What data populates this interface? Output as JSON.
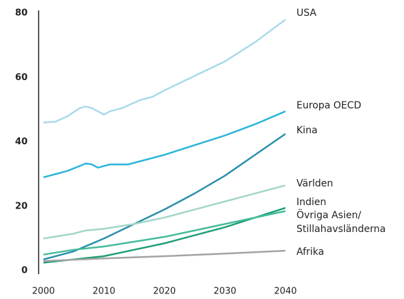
{
  "chart_data": {
    "type": "line",
    "xlim": [
      2000,
      2040
    ],
    "xticks": [
      2000,
      2010,
      2020,
      2030,
      2040
    ],
    "ylim": [
      0,
      80
    ],
    "yticks": [
      0,
      20,
      40,
      60,
      80
    ],
    "series": [
      {
        "name": "USA",
        "color": "#a9d9ea",
        "x": [
          2000,
          2002,
          2004,
          2006,
          2007,
          2008,
          2010,
          2011,
          2013,
          2016,
          2018,
          2020,
          2025,
          2030,
          2035,
          2040
        ],
        "values": [
          46,
          46.3,
          48,
          50.5,
          51,
          50.5,
          48.5,
          49.5,
          50.5,
          53,
          54,
          56,
          60.5,
          65,
          71,
          78
        ]
      },
      {
        "name": "Europa OECD",
        "color": "#2bb5d8",
        "x": [
          2000,
          2002,
          2004,
          2007,
          2008,
          2009,
          2011,
          2014,
          2020,
          2025,
          2030,
          2035,
          2040
        ],
        "values": [
          29,
          30,
          31,
          33.3,
          33,
          32,
          33,
          33,
          36,
          39,
          42,
          45.5,
          49.5
        ]
      },
      {
        "name": "Kina",
        "color": "#2a8fab",
        "x": [
          2000,
          2005,
          2010,
          2015,
          2020,
          2025,
          2030,
          2035,
          2040
        ],
        "values": [
          3.5,
          6,
          10,
          14.5,
          19,
          24,
          29.5,
          36,
          42.5
        ]
      },
      {
        "name": "Världen",
        "color": "#a3d6c8",
        "x": [
          2000,
          2005,
          2007,
          2010,
          2015,
          2020,
          2025,
          2030,
          2035,
          2040
        ],
        "values": [
          10,
          11.5,
          12.5,
          13,
          14.5,
          16.5,
          19,
          21.5,
          24,
          26.5
        ]
      },
      {
        "name": "Indien",
        "color": "#1e9e7a",
        "x": [
          2000,
          2005,
          2010,
          2015,
          2020,
          2025,
          2030,
          2035,
          2040
        ],
        "values": [
          2.5,
          3.5,
          4.5,
          6.5,
          8.5,
          11,
          13.5,
          16.5,
          19.5
        ]
      },
      {
        "name": "Övriga Asien/\nStillahavsländerna",
        "color": "#45bb9c",
        "x": [
          2000,
          2005,
          2010,
          2015,
          2020,
          2025,
          2030,
          2035,
          2040
        ],
        "values": [
          5,
          6.5,
          7.5,
          9,
          10.5,
          12.5,
          14.5,
          16.5,
          18.5
        ]
      },
      {
        "name": "Afrika",
        "color": "#a3a3a3",
        "x": [
          2000,
          2010,
          2020,
          2030,
          2040
        ],
        "values": [
          3,
          3.8,
          4.5,
          5.3,
          6.2
        ]
      }
    ]
  }
}
